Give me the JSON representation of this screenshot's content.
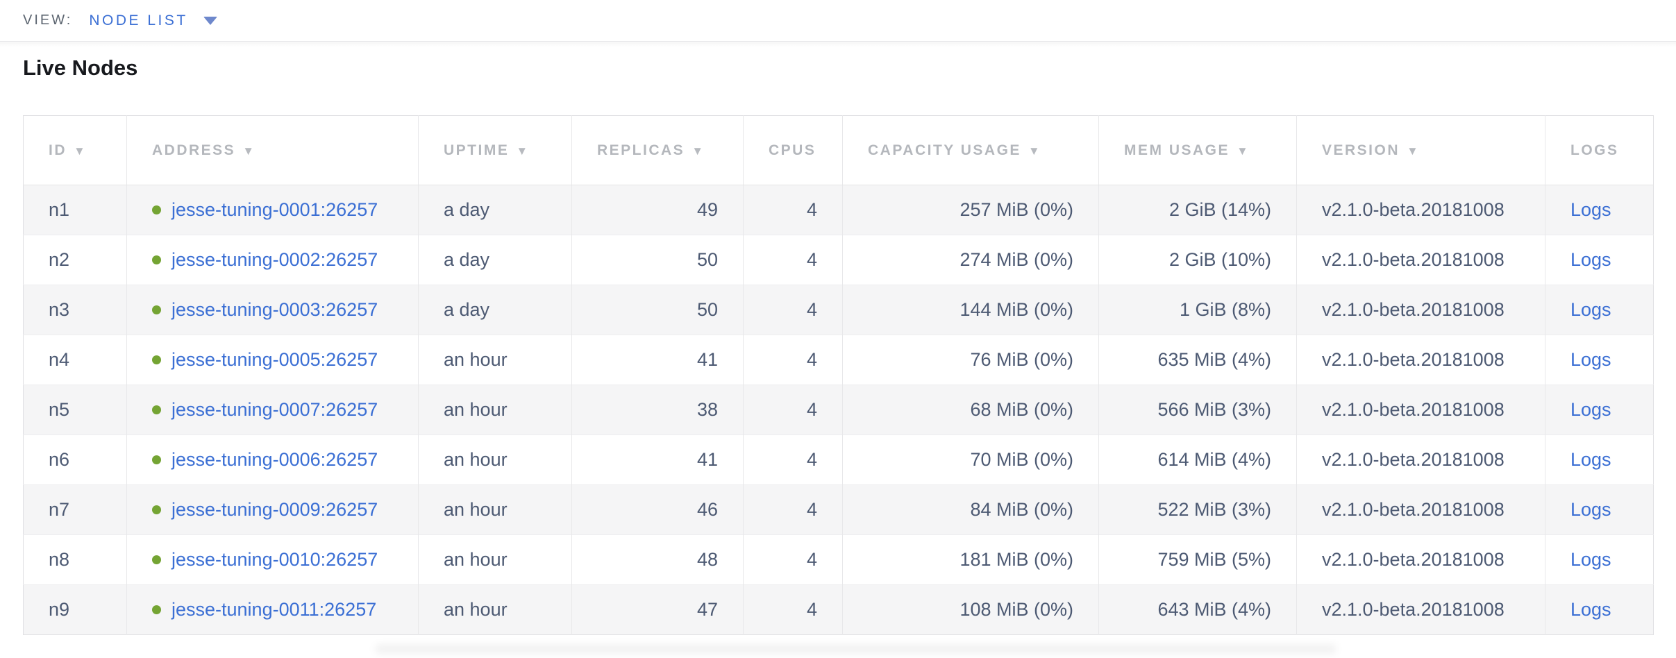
{
  "colors": {
    "accent-blue": "#3b6fd4",
    "healthy-green": "#74a433",
    "header-gray": "#b4b7bc",
    "cell-slate": "#4d5a73"
  },
  "view_bar": {
    "label": "VIEW:",
    "selected_view": "NODE LIST"
  },
  "section": {
    "title": "Live Nodes"
  },
  "table": {
    "columns": [
      {
        "key": "id",
        "label": "ID",
        "sortable": true,
        "align": "left"
      },
      {
        "key": "address",
        "label": "ADDRESS",
        "sortable": true,
        "align": "left"
      },
      {
        "key": "uptime",
        "label": "UPTIME",
        "sortable": true,
        "align": "left"
      },
      {
        "key": "replicas",
        "label": "REPLICAS",
        "sortable": true,
        "align": "right"
      },
      {
        "key": "cpus",
        "label": "CPUS",
        "sortable": false,
        "align": "right"
      },
      {
        "key": "capacity",
        "label": "CAPACITY USAGE",
        "sortable": true,
        "align": "right"
      },
      {
        "key": "mem",
        "label": "MEM USAGE",
        "sortable": true,
        "align": "right"
      },
      {
        "key": "version",
        "label": "VERSION",
        "sortable": true,
        "align": "left"
      },
      {
        "key": "logs",
        "label": "LOGS",
        "sortable": false,
        "align": "left"
      }
    ],
    "rows": [
      {
        "id": "n1",
        "status": "healthy",
        "address": "jesse-tuning-0001:26257",
        "uptime": "a day",
        "replicas": "49",
        "cpus": "4",
        "capacity": "257 MiB (0%)",
        "mem": "2 GiB (14%)",
        "version": "v2.1.0-beta.20181008",
        "logs": "Logs"
      },
      {
        "id": "n2",
        "status": "healthy",
        "address": "jesse-tuning-0002:26257",
        "uptime": "a day",
        "replicas": "50",
        "cpus": "4",
        "capacity": "274 MiB (0%)",
        "mem": "2 GiB (10%)",
        "version": "v2.1.0-beta.20181008",
        "logs": "Logs"
      },
      {
        "id": "n3",
        "status": "healthy",
        "address": "jesse-tuning-0003:26257",
        "uptime": "a day",
        "replicas": "50",
        "cpus": "4",
        "capacity": "144 MiB (0%)",
        "mem": "1 GiB (8%)",
        "version": "v2.1.0-beta.20181008",
        "logs": "Logs"
      },
      {
        "id": "n4",
        "status": "healthy",
        "address": "jesse-tuning-0005:26257",
        "uptime": "an hour",
        "replicas": "41",
        "cpus": "4",
        "capacity": "76 MiB (0%)",
        "mem": "635 MiB (4%)",
        "version": "v2.1.0-beta.20181008",
        "logs": "Logs"
      },
      {
        "id": "n5",
        "status": "healthy",
        "address": "jesse-tuning-0007:26257",
        "uptime": "an hour",
        "replicas": "38",
        "cpus": "4",
        "capacity": "68 MiB (0%)",
        "mem": "566 MiB (3%)",
        "version": "v2.1.0-beta.20181008",
        "logs": "Logs"
      },
      {
        "id": "n6",
        "status": "healthy",
        "address": "jesse-tuning-0006:26257",
        "uptime": "an hour",
        "replicas": "41",
        "cpus": "4",
        "capacity": "70 MiB (0%)",
        "mem": "614 MiB (4%)",
        "version": "v2.1.0-beta.20181008",
        "logs": "Logs"
      },
      {
        "id": "n7",
        "status": "healthy",
        "address": "jesse-tuning-0009:26257",
        "uptime": "an hour",
        "replicas": "46",
        "cpus": "4",
        "capacity": "84 MiB (0%)",
        "mem": "522 MiB (3%)",
        "version": "v2.1.0-beta.20181008",
        "logs": "Logs"
      },
      {
        "id": "n8",
        "status": "healthy",
        "address": "jesse-tuning-0010:26257",
        "uptime": "an hour",
        "replicas": "48",
        "cpus": "4",
        "capacity": "181 MiB (0%)",
        "mem": "759 MiB (5%)",
        "version": "v2.1.0-beta.20181008",
        "logs": "Logs"
      },
      {
        "id": "n9",
        "status": "healthy",
        "address": "jesse-tuning-0011:26257",
        "uptime": "an hour",
        "replicas": "47",
        "cpus": "4",
        "capacity": "108 MiB (0%)",
        "mem": "643 MiB (4%)",
        "version": "v2.1.0-beta.20181008",
        "logs": "Logs"
      }
    ]
  }
}
